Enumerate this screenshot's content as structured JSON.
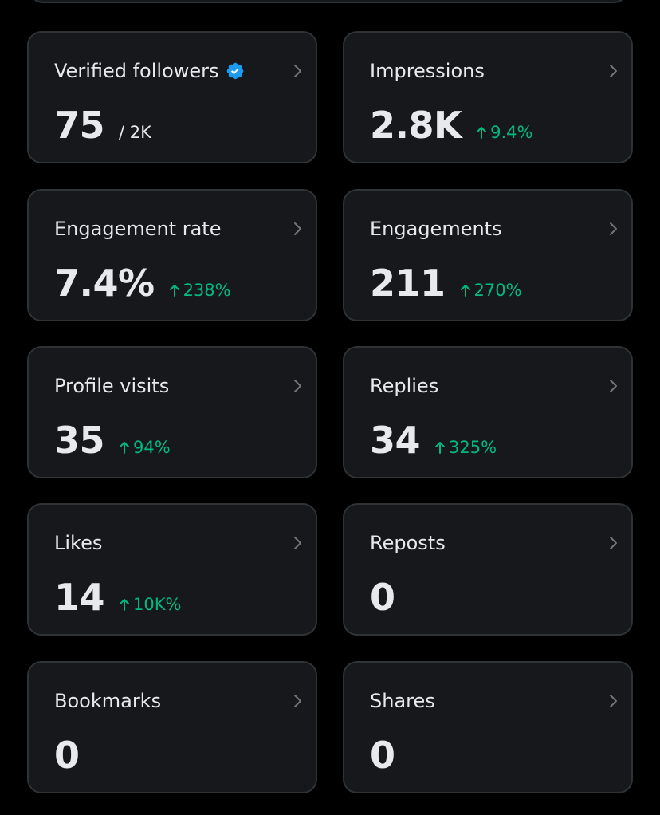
{
  "colors": {
    "background": "#000000",
    "card_background": "#16181c",
    "card_border": "#2f3336",
    "text_primary": "#e7e9ea",
    "positive_change": "#00ba7c",
    "verified_badge": "#1d9bf0",
    "chevron": "#71767b"
  },
  "icons": {
    "chevron": "chevron-right-icon",
    "verified": "verified-badge-icon",
    "trend": "arrow-up-icon"
  },
  "cards": [
    {
      "title": "Verified followers",
      "value": "75",
      "total": "/ 2K",
      "change": ""
    },
    {
      "title": "Impressions",
      "value": "2.8K",
      "total": "",
      "change": "9.4%"
    },
    {
      "title": "Engagement rate",
      "value": "7.4%",
      "total": "",
      "change": "238%"
    },
    {
      "title": "Engagements",
      "value": "211",
      "total": "",
      "change": "270%"
    },
    {
      "title": "Profile visits",
      "value": "35",
      "total": "",
      "change": "94%"
    },
    {
      "title": "Replies",
      "value": "34",
      "total": "",
      "change": "325%"
    },
    {
      "title": "Likes",
      "value": "14",
      "total": "",
      "change": "10K%"
    },
    {
      "title": "Reposts",
      "value": "0",
      "total": "",
      "change": ""
    },
    {
      "title": "Bookmarks",
      "value": "0",
      "total": "",
      "change": ""
    },
    {
      "title": "Shares",
      "value": "0",
      "total": "",
      "change": ""
    }
  ]
}
